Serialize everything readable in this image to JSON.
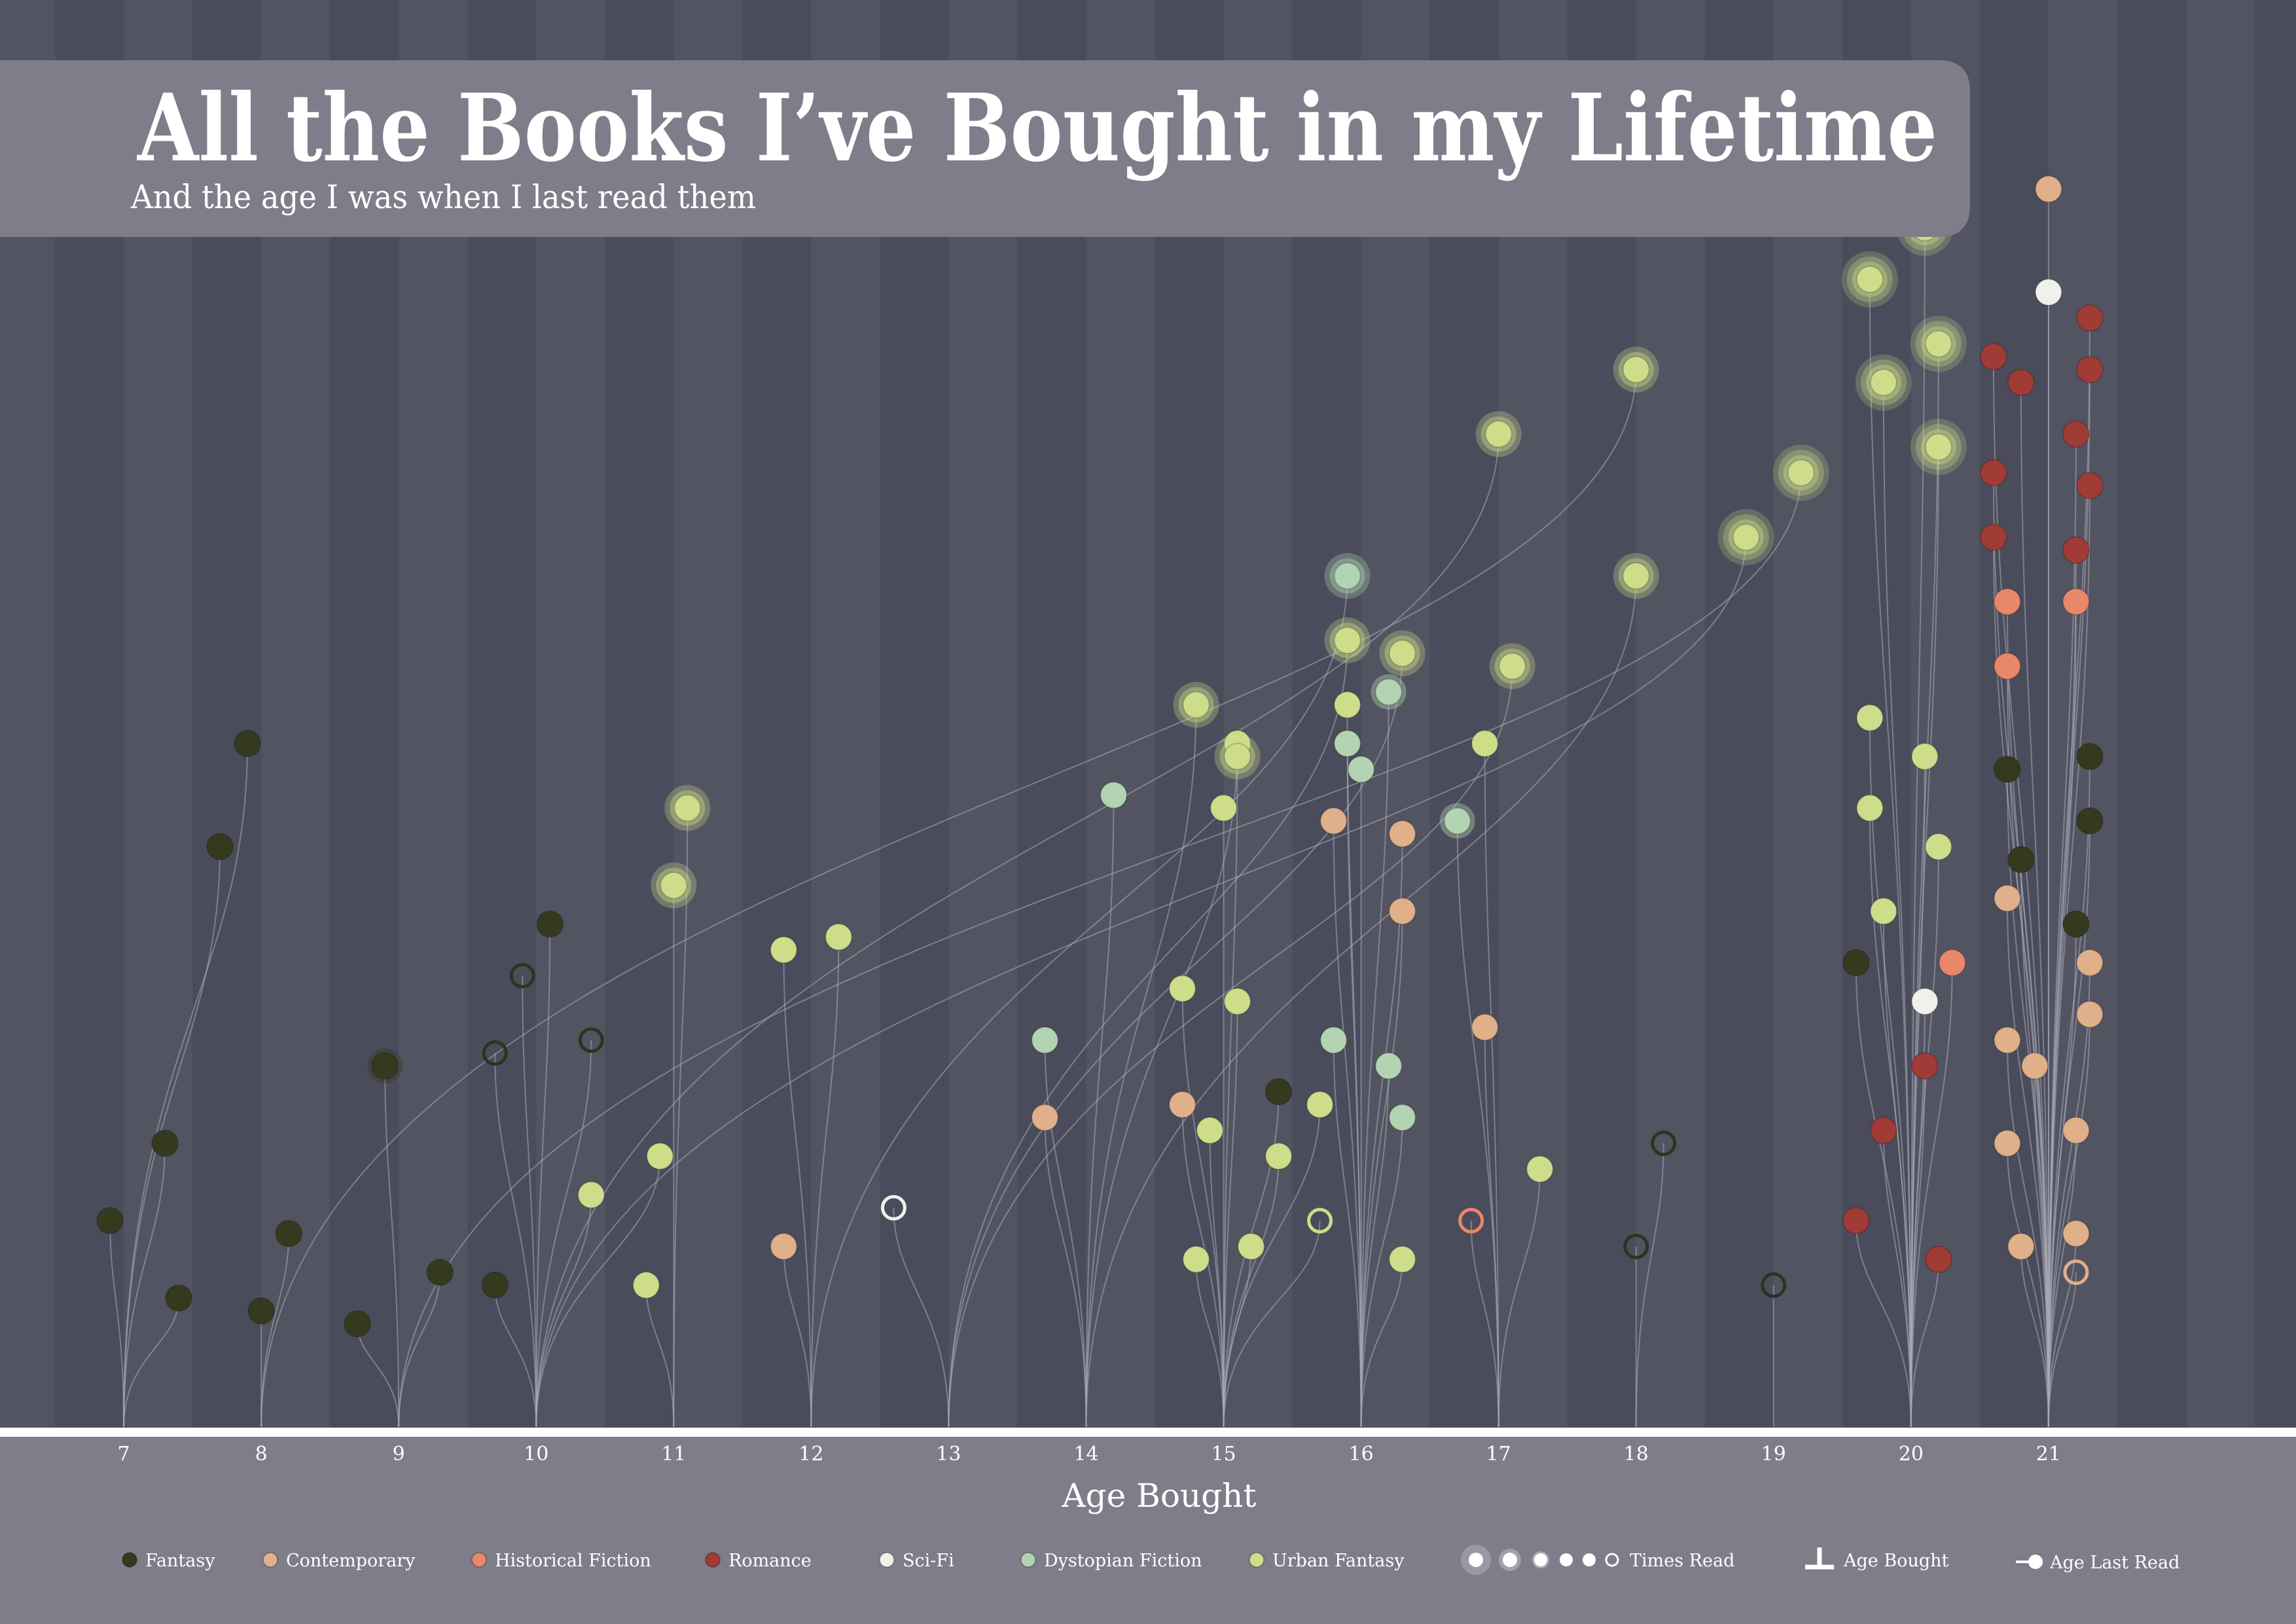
{
  "chart_data": {
    "type": "scatter",
    "title": "All the Books I’ve Bought in my Lifetime",
    "subtitle": "And the age I was when I last read them",
    "xlabel": "Age Bought",
    "ylabel": "",
    "x_ticks": [
      7,
      8,
      9,
      10,
      11,
      12,
      13,
      14,
      15,
      16,
      17,
      18,
      19,
      20,
      21
    ],
    "xlim": [
      6.1,
      22.8
    ],
    "ylim": [
      0,
      1
    ],
    "legend": {
      "placement": "bottom",
      "genres": [
        {
          "name": "Fantasy",
          "color": "#353a1f"
        },
        {
          "name": "Contemporary",
          "color": "#e0b08a"
        },
        {
          "name": "Historical Fiction",
          "color": "#e8876a"
        },
        {
          "name": "Romance",
          "color": "#a03b35"
        },
        {
          "name": "Sci-Fi",
          "color": "#f1f1ec"
        },
        {
          "name": "Dystopian Fiction",
          "color": "#b3d4b2"
        },
        {
          "name": "Urban Fantasy",
          "color": "#cddd8a"
        }
      ],
      "times_read_label": "Times Read",
      "age_bought_label": "Age Bought",
      "age_last_read_label": "Age Last Read"
    },
    "colors": {
      "background": "#4b4c5b",
      "band": "#535462",
      "panel": "#7e7d89",
      "stem": "#a9aab6"
    },
    "books": [
      {
        "b": 7,
        "x": 7.9,
        "r": 0.53,
        "g": "Fantasy",
        "t": 1
      },
      {
        "b": 7,
        "x": 7.7,
        "r": 0.45,
        "g": "Fantasy",
        "t": 1
      },
      {
        "b": 7,
        "x": 7.3,
        "r": 0.22,
        "g": "Fantasy",
        "t": 1
      },
      {
        "b": 7,
        "x": 6.9,
        "r": 0.16,
        "g": "Fantasy",
        "t": 1
      },
      {
        "b": 7,
        "x": 7.4,
        "r": 0.1,
        "g": "Fantasy",
        "t": 1
      },
      {
        "b": 8,
        "x": 8.2,
        "r": 0.15,
        "g": "Fantasy",
        "t": 1
      },
      {
        "b": 8,
        "x": 8.0,
        "r": 0.09,
        "g": "Fantasy",
        "t": 1
      },
      {
        "b": 8,
        "x": 18.0,
        "r": 0.82,
        "g": "Urban Fantasy",
        "t": 4
      },
      {
        "b": 9,
        "x": 8.9,
        "r": 0.28,
        "g": "Fantasy",
        "t": 2
      },
      {
        "b": 9,
        "x": 9.3,
        "r": 0.12,
        "g": "Fantasy",
        "t": 1
      },
      {
        "b": 9,
        "x": 8.7,
        "r": 0.08,
        "g": "Fantasy",
        "t": 1
      },
      {
        "b": 9,
        "x": 19.2,
        "r": 0.74,
        "g": "Urban Fantasy",
        "t": 5
      },
      {
        "b": 10,
        "x": 10.1,
        "r": 0.39,
        "g": "Fantasy",
        "t": 1
      },
      {
        "b": 10,
        "x": 9.9,
        "r": 0.35,
        "g": "Fantasy",
        "t": 0
      },
      {
        "b": 10,
        "x": 10.4,
        "r": 0.3,
        "g": "Fantasy",
        "t": 0
      },
      {
        "b": 10,
        "x": 9.7,
        "r": 0.29,
        "g": "Fantasy",
        "t": 0
      },
      {
        "b": 10,
        "x": 10.4,
        "r": 0.18,
        "g": "Urban Fantasy",
        "t": 1
      },
      {
        "b": 10,
        "x": 9.7,
        "r": 0.11,
        "g": "Fantasy",
        "t": 1
      },
      {
        "b": 10,
        "x": 10.9,
        "r": 0.21,
        "g": "Urban Fantasy",
        "t": 1
      },
      {
        "b": 10,
        "x": 17.0,
        "r": 0.77,
        "g": "Urban Fantasy",
        "t": 3
      },
      {
        "b": 10,
        "x": 18.8,
        "r": 0.69,
        "g": "Urban Fantasy",
        "t": 5
      },
      {
        "b": 11,
        "x": 11.1,
        "r": 0.48,
        "g": "Urban Fantasy",
        "t": 3
      },
      {
        "b": 11,
        "x": 11.0,
        "r": 0.42,
        "g": "Urban Fantasy",
        "t": 3
      },
      {
        "b": 11,
        "x": 10.8,
        "r": 0.11,
        "g": "Urban Fantasy",
        "t": 1
      },
      {
        "b": 12,
        "x": 11.8,
        "r": 0.37,
        "g": "Urban Fantasy",
        "t": 1
      },
      {
        "b": 12,
        "x": 12.2,
        "r": 0.38,
        "g": "Urban Fantasy",
        "t": 1
      },
      {
        "b": 12,
        "x": 11.8,
        "r": 0.14,
        "g": "Contemporary",
        "t": 1
      },
      {
        "b": 12,
        "x": 15.9,
        "r": 0.66,
        "g": "Dystopian Fiction",
        "t": 3
      },
      {
        "b": 13,
        "x": 12.6,
        "r": 0.17,
        "g": "Sci-Fi",
        "t": 0
      },
      {
        "b": 13,
        "x": 15.9,
        "r": 0.61,
        "g": "Urban Fantasy",
        "t": 3
      },
      {
        "b": 13,
        "x": 16.3,
        "r": 0.6,
        "g": "Urban Fantasy",
        "t": 3
      },
      {
        "b": 13,
        "x": 17.1,
        "r": 0.59,
        "g": "Urban Fantasy",
        "t": 3
      },
      {
        "b": 14,
        "x": 14.2,
        "r": 0.49,
        "g": "Dystopian Fiction",
        "t": 1
      },
      {
        "b": 14,
        "x": 13.7,
        "r": 0.3,
        "g": "Dystopian Fiction",
        "t": 1
      },
      {
        "b": 14,
        "x": 13.7,
        "r": 0.24,
        "g": "Contemporary",
        "t": 1
      },
      {
        "b": 14,
        "x": 14.8,
        "r": 0.56,
        "g": "Urban Fantasy",
        "t": 3
      },
      {
        "b": 14,
        "x": 15.1,
        "r": 0.53,
        "g": "Urban Fantasy",
        "t": 1
      },
      {
        "b": 14,
        "x": 18.0,
        "r": 0.66,
        "g": "Urban Fantasy",
        "t": 3
      },
      {
        "b": 15,
        "x": 15.1,
        "r": 0.52,
        "g": "Urban Fantasy",
        "t": 3
      },
      {
        "b": 15,
        "x": 15.0,
        "r": 0.48,
        "g": "Urban Fantasy",
        "t": 1
      },
      {
        "b": 15,
        "x": 14.7,
        "r": 0.34,
        "g": "Urban Fantasy",
        "t": 1
      },
      {
        "b": 15,
        "x": 15.1,
        "r": 0.33,
        "g": "Urban Fantasy",
        "t": 1
      },
      {
        "b": 15,
        "x": 15.4,
        "r": 0.26,
        "g": "Fantasy",
        "t": 1
      },
      {
        "b": 15,
        "x": 14.7,
        "r": 0.25,
        "g": "Contemporary",
        "t": 1
      },
      {
        "b": 15,
        "x": 14.9,
        "r": 0.23,
        "g": "Urban Fantasy",
        "t": 1
      },
      {
        "b": 15,
        "x": 15.4,
        "r": 0.21,
        "g": "Urban Fantasy",
        "t": 1
      },
      {
        "b": 15,
        "x": 15.7,
        "r": 0.25,
        "g": "Urban Fantasy",
        "t": 1
      },
      {
        "b": 15,
        "x": 15.7,
        "r": 0.16,
        "g": "Urban Fantasy",
        "t": 0
      },
      {
        "b": 15,
        "x": 14.8,
        "r": 0.13,
        "g": "Urban Fantasy",
        "t": 1
      },
      {
        "b": 15,
        "x": 15.2,
        "r": 0.14,
        "g": "Urban Fantasy",
        "t": 1
      },
      {
        "b": 16,
        "x": 15.9,
        "r": 0.56,
        "g": "Urban Fantasy",
        "t": 1
      },
      {
        "b": 16,
        "x": 15.9,
        "r": 0.53,
        "g": "Dystopian Fiction",
        "t": 1
      },
      {
        "b": 16,
        "x": 16.2,
        "r": 0.57,
        "g": "Dystopian Fiction",
        "t": 2
      },
      {
        "b": 16,
        "x": 16.0,
        "r": 0.51,
        "g": "Dystopian Fiction",
        "t": 1
      },
      {
        "b": 16,
        "x": 15.8,
        "r": 0.47,
        "g": "Contemporary",
        "t": 1
      },
      {
        "b": 16,
        "x": 16.3,
        "r": 0.46,
        "g": "Contemporary",
        "t": 1
      },
      {
        "b": 16,
        "x": 16.3,
        "r": 0.4,
        "g": "Contemporary",
        "t": 1
      },
      {
        "b": 16,
        "x": 15.8,
        "r": 0.3,
        "g": "Dystopian Fiction",
        "t": 1
      },
      {
        "b": 16,
        "x": 16.2,
        "r": 0.28,
        "g": "Dystopian Fiction",
        "t": 1
      },
      {
        "b": 16,
        "x": 16.3,
        "r": 0.24,
        "g": "Dystopian Fiction",
        "t": 1
      },
      {
        "b": 16,
        "x": 16.3,
        "r": 0.13,
        "g": "Urban Fantasy",
        "t": 1
      },
      {
        "b": 17,
        "x": 16.7,
        "r": 0.47,
        "g": "Dystopian Fiction",
        "t": 2
      },
      {
        "b": 17,
        "x": 16.9,
        "r": 0.53,
        "g": "Urban Fantasy",
        "t": 1
      },
      {
        "b": 17,
        "x": 16.9,
        "r": 0.31,
        "g": "Contemporary",
        "t": 1
      },
      {
        "b": 17,
        "x": 16.8,
        "r": 0.16,
        "g": "Historical Fiction",
        "t": 0
      },
      {
        "b": 17,
        "x": 17.3,
        "r": 0.2,
        "g": "Urban Fantasy",
        "t": 1
      },
      {
        "b": 18,
        "x": 18.2,
        "r": 0.22,
        "g": "Fantasy",
        "t": 0
      },
      {
        "b": 18,
        "x": 18.0,
        "r": 0.14,
        "g": "Fantasy",
        "t": 0
      },
      {
        "b": 19,
        "x": 19.0,
        "r": 0.11,
        "g": "Fantasy",
        "t": 0
      },
      {
        "b": 20,
        "x": 19.7,
        "r": 0.55,
        "g": "Urban Fantasy",
        "t": 1
      },
      {
        "b": 20,
        "x": 20.1,
        "r": 0.52,
        "g": "Urban Fantasy",
        "t": 1
      },
      {
        "b": 20,
        "x": 19.7,
        "r": 0.48,
        "g": "Urban Fantasy",
        "t": 1
      },
      {
        "b": 20,
        "x": 20.2,
        "r": 0.45,
        "g": "Urban Fantasy",
        "t": 1
      },
      {
        "b": 20,
        "x": 19.8,
        "r": 0.4,
        "g": "Urban Fantasy",
        "t": 1
      },
      {
        "b": 20,
        "x": 19.6,
        "r": 0.36,
        "g": "Fantasy",
        "t": 1
      },
      {
        "b": 20,
        "x": 20.3,
        "r": 0.36,
        "g": "Historical Fiction",
        "t": 1
      },
      {
        "b": 20,
        "x": 20.1,
        "r": 0.33,
        "g": "Sci-Fi",
        "t": 1
      },
      {
        "b": 20,
        "x": 20.1,
        "r": 0.28,
        "g": "Romance",
        "t": 1
      },
      {
        "b": 20,
        "x": 19.8,
        "r": 0.23,
        "g": "Romance",
        "t": 1
      },
      {
        "b": 20,
        "x": 19.6,
        "r": 0.16,
        "g": "Romance",
        "t": 1
      },
      {
        "b": 20,
        "x": 20.2,
        "r": 0.13,
        "g": "Romance",
        "t": 1
      },
      {
        "b": 20,
        "x": 19.7,
        "r": 0.89,
        "g": "Urban Fantasy",
        "t": 5
      },
      {
        "b": 20,
        "x": 20.1,
        "r": 0.93,
        "g": "Urban Fantasy",
        "t": 5
      },
      {
        "b": 20,
        "x": 20.2,
        "r": 0.84,
        "g": "Urban Fantasy",
        "t": 5
      },
      {
        "b": 20,
        "x": 19.8,
        "r": 0.81,
        "g": "Urban Fantasy",
        "t": 5
      },
      {
        "b": 20,
        "x": 20.2,
        "r": 0.76,
        "g": "Urban Fantasy",
        "t": 5
      },
      {
        "b": 21,
        "x": 21.0,
        "r": 0.96,
        "g": "Contemporary",
        "t": 1
      },
      {
        "b": 21,
        "x": 21.0,
        "r": 0.88,
        "g": "Sci-Fi",
        "t": 1
      },
      {
        "b": 21,
        "x": 20.6,
        "r": 0.83,
        "g": "Romance",
        "t": 1
      },
      {
        "b": 21,
        "x": 20.8,
        "r": 0.81,
        "g": "Romance",
        "t": 1
      },
      {
        "b": 21,
        "x": 21.3,
        "r": 0.86,
        "g": "Romance",
        "t": 1
      },
      {
        "b": 21,
        "x": 21.3,
        "r": 0.82,
        "g": "Romance",
        "t": 1
      },
      {
        "b": 21,
        "x": 21.2,
        "r": 0.77,
        "g": "Romance",
        "t": 1
      },
      {
        "b": 21,
        "x": 20.6,
        "r": 0.74,
        "g": "Romance",
        "t": 1
      },
      {
        "b": 21,
        "x": 21.3,
        "r": 0.73,
        "g": "Romance",
        "t": 1
      },
      {
        "b": 21,
        "x": 20.6,
        "r": 0.69,
        "g": "Romance",
        "t": 1
      },
      {
        "b": 21,
        "x": 21.2,
        "r": 0.68,
        "g": "Romance",
        "t": 1
      },
      {
        "b": 21,
        "x": 20.7,
        "r": 0.64,
        "g": "Historical Fiction",
        "t": 1
      },
      {
        "b": 21,
        "x": 21.2,
        "r": 0.64,
        "g": "Historical Fiction",
        "t": 1
      },
      {
        "b": 21,
        "x": 20.7,
        "r": 0.59,
        "g": "Historical Fiction",
        "t": 1
      },
      {
        "b": 21,
        "x": 20.7,
        "r": 0.51,
        "g": "Fantasy",
        "t": 1
      },
      {
        "b": 21,
        "x": 21.3,
        "r": 0.52,
        "g": "Fantasy",
        "t": 1
      },
      {
        "b": 21,
        "x": 21.3,
        "r": 0.47,
        "g": "Fantasy",
        "t": 1
      },
      {
        "b": 21,
        "x": 20.8,
        "r": 0.44,
        "g": "Fantasy",
        "t": 1
      },
      {
        "b": 21,
        "x": 21.2,
        "r": 0.39,
        "g": "Fantasy",
        "t": 1
      },
      {
        "b": 21,
        "x": 20.7,
        "r": 0.41,
        "g": "Contemporary",
        "t": 1
      },
      {
        "b": 21,
        "x": 21.3,
        "r": 0.36,
        "g": "Contemporary",
        "t": 1
      },
      {
        "b": 21,
        "x": 21.3,
        "r": 0.32,
        "g": "Contemporary",
        "t": 1
      },
      {
        "b": 21,
        "x": 20.7,
        "r": 0.3,
        "g": "Contemporary",
        "t": 1
      },
      {
        "b": 21,
        "x": 20.9,
        "r": 0.28,
        "g": "Contemporary",
        "t": 1
      },
      {
        "b": 21,
        "x": 20.7,
        "r": 0.22,
        "g": "Contemporary",
        "t": 1
      },
      {
        "b": 21,
        "x": 21.2,
        "r": 0.23,
        "g": "Contemporary",
        "t": 1
      },
      {
        "b": 21,
        "x": 20.8,
        "r": 0.14,
        "g": "Contemporary",
        "t": 1
      },
      {
        "b": 21,
        "x": 21.2,
        "r": 0.15,
        "g": "Contemporary",
        "t": 1
      },
      {
        "b": 21,
        "x": 21.2,
        "r": 0.12,
        "g": "Contemporary",
        "t": 0
      }
    ]
  }
}
